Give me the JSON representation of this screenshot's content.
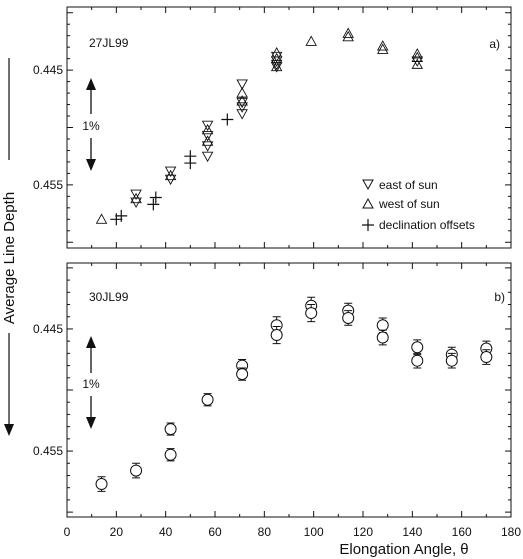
{
  "figure": {
    "ylabel": "Average Line Depth",
    "xlabel": "Elongation Angle, θ"
  },
  "chart_data": [
    {
      "type": "scatter",
      "panel_label": "a)",
      "date_label": "27JL99",
      "scale_label": "1%",
      "xlim": [
        0,
        180
      ],
      "ylim": [
        0.4605,
        0.4395
      ],
      "y_inverted": true,
      "yticks": [
        "0.445",
        "0.455"
      ],
      "ytick_values": [
        0.445,
        0.455
      ],
      "xticks": [],
      "legend_position": "bottom-right",
      "series": [
        {
          "name": "east of sun",
          "marker": "triangle-down",
          "points": [
            {
              "x": 28,
              "y": 0.4565
            },
            {
              "x": 28,
              "y": 0.4558
            },
            {
              "x": 42,
              "y": 0.4545
            },
            {
              "x": 42,
              "y": 0.4538
            },
            {
              "x": 57,
              "y": 0.4498
            },
            {
              "x": 57,
              "y": 0.4507
            },
            {
              "x": 57,
              "y": 0.4516
            },
            {
              "x": 57,
              "y": 0.4525
            },
            {
              "x": 71,
              "y": 0.4482
            },
            {
              "x": 71,
              "y": 0.4478
            },
            {
              "x": 71,
              "y": 0.4488
            },
            {
              "x": 71,
              "y": 0.4462
            },
            {
              "x": 85,
              "y": 0.4447
            },
            {
              "x": 85,
              "y": 0.4445
            },
            {
              "x": 85,
              "y": 0.4442
            },
            {
              "x": 85,
              "y": 0.4438
            },
            {
              "x": 142,
              "y": 0.4442
            }
          ]
        },
        {
          "name": "west of sun",
          "marker": "triangle-up",
          "points": [
            {
              "x": 14,
              "y": 0.458
            },
            {
              "x": 28,
              "y": 0.4562
            },
            {
              "x": 42,
              "y": 0.4542
            },
            {
              "x": 57,
              "y": 0.4502
            },
            {
              "x": 57,
              "y": 0.4512
            },
            {
              "x": 71,
              "y": 0.4477
            },
            {
              "x": 71,
              "y": 0.447
            },
            {
              "x": 85,
              "y": 0.4447
            },
            {
              "x": 85,
              "y": 0.444
            },
            {
              "x": 85,
              "y": 0.4435
            },
            {
              "x": 99,
              "y": 0.4425
            },
            {
              "x": 114,
              "y": 0.4418
            },
            {
              "x": 114,
              "y": 0.4421
            },
            {
              "x": 128,
              "y": 0.4432
            },
            {
              "x": 128,
              "y": 0.4429
            },
            {
              "x": 142,
              "y": 0.4439
            },
            {
              "x": 142,
              "y": 0.4436
            },
            {
              "x": 142,
              "y": 0.4445
            }
          ]
        },
        {
          "name": "declination offsets",
          "marker": "plus",
          "points": [
            {
              "x": 20,
              "y": 0.458
            },
            {
              "x": 22,
              "y": 0.4577
            },
            {
              "x": 35,
              "y": 0.4567
            },
            {
              "x": 36,
              "y": 0.4561
            },
            {
              "x": 50,
              "y": 0.4531
            },
            {
              "x": 50,
              "y": 0.4525
            },
            {
              "x": 65,
              "y": 0.4493
            }
          ]
        }
      ]
    },
    {
      "type": "scatter",
      "panel_label": "b)",
      "date_label": "30JL99",
      "scale_label": "1%",
      "xlim": [
        0,
        180
      ],
      "ylim": [
        0.4604,
        0.4396
      ],
      "y_inverted": true,
      "yticks": [
        "0.445",
        "0.455"
      ],
      "ytick_values": [
        0.445,
        0.455
      ],
      "xticks": [
        "0",
        "20",
        "40",
        "60",
        "80",
        "100",
        "120",
        "140",
        "160",
        "180"
      ],
      "xtick_values": [
        0,
        20,
        40,
        60,
        80,
        100,
        120,
        140,
        160,
        180
      ],
      "series": [
        {
          "marker": "circle",
          "points": [
            {
              "x": 14,
              "y": 0.4577,
              "err": 0.0006
            },
            {
              "x": 28,
              "y": 0.4566,
              "err": 0.0006
            },
            {
              "x": 42,
              "y": 0.4553,
              "err": 0.0005
            },
            {
              "x": 42,
              "y": 0.4532,
              "err": 0.0005
            },
            {
              "x": 57,
              "y": 0.4508,
              "err": 0.0005
            },
            {
              "x": 71,
              "y": 0.448,
              "err": 0.0005
            },
            {
              "x": 71,
              "y": 0.4487,
              "err": 0.0005
            },
            {
              "x": 85,
              "y": 0.4447,
              "err": 0.0007
            },
            {
              "x": 85,
              "y": 0.4455,
              "err": 0.0007
            },
            {
              "x": 99,
              "y": 0.4431,
              "err": 0.0007
            },
            {
              "x": 99,
              "y": 0.4437,
              "err": 0.0007
            },
            {
              "x": 114,
              "y": 0.4435,
              "err": 0.0006
            },
            {
              "x": 114,
              "y": 0.4441,
              "err": 0.0006
            },
            {
              "x": 128,
              "y": 0.4447,
              "err": 0.0006
            },
            {
              "x": 128,
              "y": 0.4457,
              "err": 0.0006
            },
            {
              "x": 142,
              "y": 0.4465,
              "err": 0.0006
            },
            {
              "x": 142,
              "y": 0.4476,
              "err": 0.0006
            },
            {
              "x": 156,
              "y": 0.4471,
              "err": 0.0006
            },
            {
              "x": 156,
              "y": 0.4476,
              "err": 0.0006
            },
            {
              "x": 170,
              "y": 0.4466,
              "err": 0.0006
            },
            {
              "x": 170,
              "y": 0.4473,
              "err": 0.0006
            }
          ]
        }
      ]
    }
  ]
}
